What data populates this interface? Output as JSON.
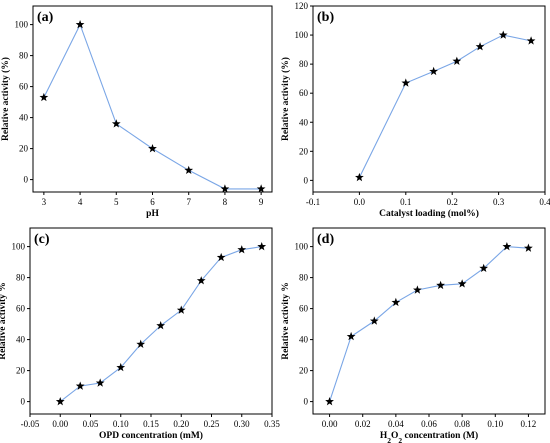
{
  "series_color": "#7aa6e6",
  "marker_color": "#000000",
  "marker_shape": "star",
  "chart_data": [
    {
      "type": "line",
      "panel_label": "(a)",
      "xlabel": "pH",
      "ylabel": "Relative activity (%)",
      "xlim": [
        2.7,
        9.3
      ],
      "ylim": [
        -8,
        112
      ],
      "xticks": [
        3,
        4,
        5,
        6,
        7,
        8,
        9
      ],
      "yticks": [
        0,
        20,
        40,
        60,
        80,
        100
      ],
      "x": [
        3,
        4,
        5,
        6,
        7,
        8,
        9
      ],
      "y": [
        53,
        100,
        36,
        20,
        6,
        -6,
        -6
      ],
      "grid": false,
      "legend": "none"
    },
    {
      "type": "line",
      "panel_label": "(b)",
      "xlabel": "Catalyst loading (mol%)",
      "ylabel": "Relative activity (%)",
      "xlim": [
        -0.1,
        0.4
      ],
      "ylim": [
        -8,
        120
      ],
      "xticks": [
        -0.1,
        0.0,
        0.1,
        0.2,
        0.3,
        0.4
      ],
      "yticks": [
        0,
        20,
        40,
        60,
        80,
        100,
        120
      ],
      "x": [
        0.0,
        0.1,
        0.16,
        0.21,
        0.26,
        0.31,
        0.37
      ],
      "y": [
        2,
        67,
        75,
        82,
        92,
        100,
        96
      ],
      "grid": false,
      "legend": "none"
    },
    {
      "type": "line",
      "panel_label": "(c)",
      "xlabel": "OPD concentration (mM)",
      "ylabel": "Relative activity %",
      "xlim": [
        -0.05,
        0.35
      ],
      "ylim": [
        -8,
        112
      ],
      "xticks": [
        -0.05,
        0.0,
        0.05,
        0.1,
        0.15,
        0.2,
        0.25,
        0.3,
        0.35
      ],
      "yticks": [
        0,
        20,
        40,
        60,
        80,
        100
      ],
      "x": [
        0.0,
        0.033,
        0.066,
        0.1,
        0.133,
        0.166,
        0.2,
        0.233,
        0.266,
        0.3,
        0.333
      ],
      "y": [
        0,
        10,
        12,
        22,
        37,
        49,
        59,
        78,
        93,
        98,
        100
      ],
      "grid": false,
      "legend": "none"
    },
    {
      "type": "line",
      "panel_label": "(d)",
      "xlabel_parts": [
        "H",
        "2",
        "O",
        "2",
        " concentration (M)"
      ],
      "ylabel": "Relative activity %",
      "xlim": [
        -0.01,
        0.13
      ],
      "ylim": [
        -8,
        112
      ],
      "xticks": [
        0.0,
        0.02,
        0.04,
        0.06,
        0.08,
        0.1,
        0.12
      ],
      "yticks": [
        0,
        20,
        40,
        60,
        80,
        100
      ],
      "x": [
        0.0,
        0.013,
        0.027,
        0.04,
        0.053,
        0.067,
        0.08,
        0.093,
        0.107,
        0.12
      ],
      "y": [
        0,
        42,
        52,
        64,
        72,
        75,
        76,
        86,
        100,
        99
      ],
      "grid": false,
      "legend": "none"
    }
  ]
}
